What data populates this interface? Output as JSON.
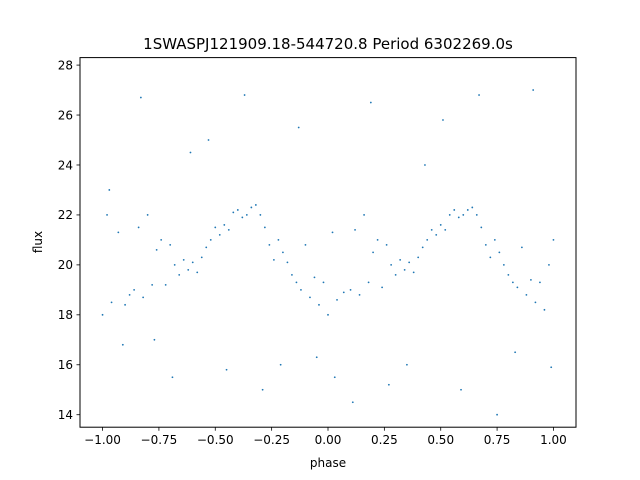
{
  "chart_data": {
    "type": "scatter",
    "title": "1SWASPJ121909.18-544720.8 Period 6302269.0s",
    "xlabel": "phase",
    "ylabel": "flux",
    "xlim": [
      -1.1,
      1.1
    ],
    "ylim": [
      13.5,
      28.3
    ],
    "grid": false,
    "legend": "none",
    "marker_color": "#1f77b4",
    "x_ticks": [
      -1.0,
      -0.75,
      -0.5,
      -0.25,
      0.0,
      0.25,
      0.5,
      0.75,
      1.0
    ],
    "x_tick_labels": [
      "−1.00",
      "−0.75",
      "−0.50",
      "−0.25",
      "0.00",
      "0.25",
      "0.50",
      "0.75",
      "1.00"
    ],
    "y_ticks": [
      14,
      16,
      18,
      20,
      22,
      24,
      26,
      28
    ],
    "y_tick_labels": [
      "14",
      "16",
      "18",
      "20",
      "22",
      "24",
      "26",
      "28"
    ],
    "series": [
      {
        "x": [
          -1.0,
          -0.98,
          -0.96,
          -0.93,
          -0.9,
          -0.88,
          -0.86,
          -0.84,
          -0.82,
          -0.8,
          -0.78,
          -0.76,
          -0.74,
          -0.72,
          -0.7,
          -0.68,
          -0.66,
          -0.64,
          -0.62,
          -0.6,
          -0.58,
          -0.56,
          -0.54,
          -0.52,
          -0.5,
          -0.48,
          -0.46,
          -0.44,
          -0.42,
          -0.4,
          -0.38,
          -0.36,
          -0.34,
          -0.32,
          -0.3,
          -0.28,
          -0.26,
          -0.24,
          -0.22,
          -0.2,
          -0.18,
          -0.16,
          -0.14,
          -0.12,
          -0.1,
          -0.08,
          -0.06,
          -0.04,
          -0.02,
          0.0,
          0.02,
          0.04,
          0.07,
          0.1,
          0.12,
          0.14,
          0.16,
          0.18,
          0.2,
          0.22,
          0.24,
          0.26,
          0.28,
          0.3,
          0.32,
          0.34,
          0.36,
          0.38,
          0.4,
          0.42,
          0.44,
          0.46,
          0.48,
          0.5,
          0.52,
          0.54,
          0.56,
          0.58,
          0.6,
          0.62,
          0.64,
          0.66,
          0.68,
          0.7,
          0.72,
          0.74,
          0.76,
          0.78,
          0.8,
          0.82,
          0.84,
          0.86,
          0.88,
          0.9,
          0.92,
          0.94,
          0.96,
          0.98,
          1.0,
          -0.97,
          -0.91,
          -0.83,
          -0.77,
          -0.69,
          -0.61,
          -0.53,
          -0.45,
          -0.37,
          -0.29,
          -0.21,
          -0.13,
          -0.05,
          0.03,
          0.11,
          0.19,
          0.27,
          0.35,
          0.43,
          0.51,
          0.59,
          0.67,
          0.75,
          0.83,
          0.91,
          0.99
        ],
        "y": [
          18.0,
          22.0,
          18.5,
          21.3,
          18.4,
          18.8,
          19.0,
          21.5,
          18.7,
          22.0,
          19.2,
          20.6,
          21.0,
          19.2,
          20.8,
          20.0,
          19.6,
          20.2,
          19.8,
          20.1,
          19.7,
          20.3,
          20.7,
          21.0,
          21.5,
          21.2,
          21.6,
          21.4,
          22.1,
          22.2,
          21.9,
          22.0,
          22.3,
          22.4,
          22.0,
          21.5,
          20.8,
          20.2,
          21.0,
          20.5,
          20.1,
          19.6,
          19.3,
          19.0,
          20.8,
          18.7,
          19.5,
          18.4,
          19.3,
          18.0,
          21.3,
          18.6,
          18.9,
          19.0,
          21.4,
          18.8,
          22.0,
          19.3,
          20.5,
          21.0,
          19.1,
          20.8,
          20.0,
          19.6,
          20.2,
          19.8,
          20.1,
          19.7,
          20.3,
          20.7,
          21.0,
          21.4,
          21.2,
          21.6,
          21.4,
          22.0,
          22.2,
          21.9,
          22.0,
          22.2,
          22.3,
          22.0,
          21.5,
          20.8,
          20.3,
          21.0,
          20.5,
          20.0,
          19.6,
          19.3,
          19.1,
          20.7,
          18.8,
          19.4,
          18.5,
          19.3,
          18.2,
          20.0,
          21.0,
          23.0,
          16.8,
          26.7,
          17.0,
          15.5,
          24.5,
          25.0,
          15.8,
          26.8,
          15.0,
          16.0,
          25.5,
          16.3,
          15.5,
          14.5,
          26.5,
          15.2,
          16.0,
          24.0,
          25.8,
          15.0,
          26.8,
          14.0,
          16.5,
          27.0,
          15.9
        ]
      }
    ]
  }
}
